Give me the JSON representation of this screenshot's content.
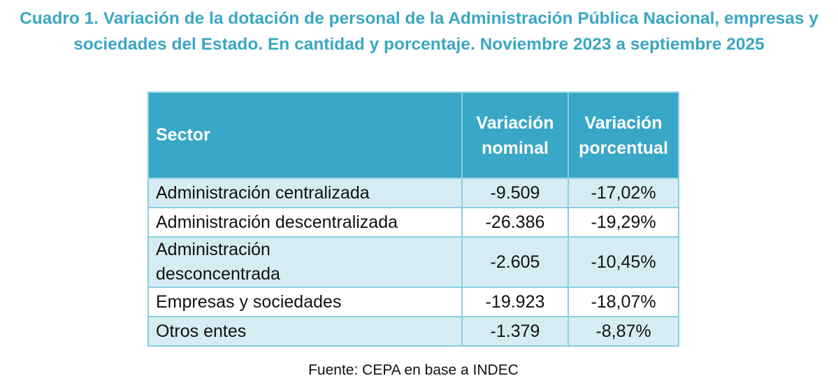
{
  "title": "Cuadro 1. Variación de la dotación de personal de la Administración Pública Nacional, empresas y sociedades del Estado. En cantidad y porcentaje. Noviembre 2023 a septiembre 2025",
  "headers": {
    "sector": "Sector",
    "nominal": "Variación nominal",
    "percent": "Variación porcentual"
  },
  "rows": [
    {
      "sector": "Administración centralizada",
      "nominal": "-9.509",
      "percent": "-17,02%"
    },
    {
      "sector": "Administración descentralizada",
      "nominal": "-26.386",
      "percent": "-19,29%"
    },
    {
      "sector": "Administración desconcentrada",
      "nominal": "-2.605",
      "percent": "-10,45%"
    },
    {
      "sector": "Empresas y sociedades",
      "nominal": "-19.923",
      "percent": "-18,07%"
    },
    {
      "sector": "Otros entes",
      "nominal": "-1.379",
      "percent": "-8,87%"
    }
  ],
  "source": "Fuente: CEPA en base a INDEC"
}
